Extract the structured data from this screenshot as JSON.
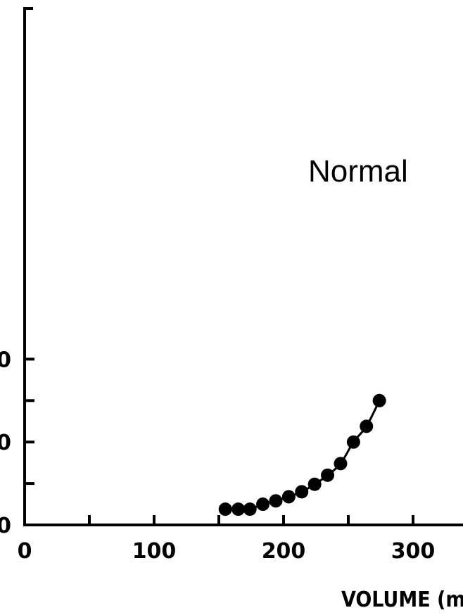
{
  "chart_data": {
    "type": "line",
    "title": "",
    "xlabel": "VOLUME (m",
    "ylabel": "",
    "xlim": [
      0,
      330
    ],
    "ylim": [
      0,
      25
    ],
    "x_ticks": [
      0,
      50,
      100,
      150,
      200,
      250,
      300
    ],
    "x_tick_labels": [
      "0",
      "",
      "100",
      "",
      "200",
      "",
      "300"
    ],
    "y_ticks": [
      0,
      5,
      10,
      15,
      20
    ],
    "y_tick_labels": [
      "0",
      "",
      "0",
      "",
      "0"
    ],
    "grid": false,
    "legend": "none",
    "series": [
      {
        "name": "Normal",
        "color": "#000000",
        "x": [
          155,
          165,
          174,
          184,
          194,
          204,
          214,
          224,
          234,
          244,
          254,
          264,
          274
        ],
        "y": [
          1.9,
          1.9,
          1.9,
          2.5,
          2.9,
          3.4,
          4.0,
          4.9,
          6.0,
          7.4,
          10.0,
          11.9,
          15.0
        ]
      }
    ]
  }
}
